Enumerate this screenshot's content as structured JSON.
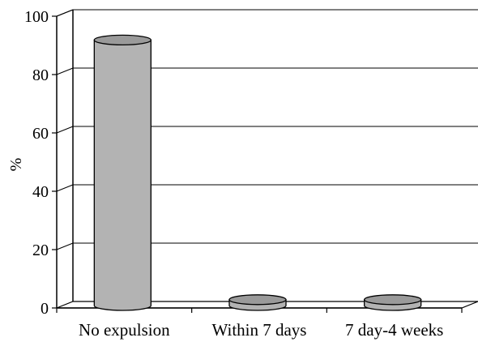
{
  "chart_data": {
    "type": "bar",
    "style": "3d-cylinder",
    "categories": [
      "No expulsion",
      "Within 7 days",
      "7 day-4 weeks"
    ],
    "values": [
      91,
      2,
      2
    ],
    "title": "",
    "xlabel": "",
    "ylabel": "%",
    "ylim": [
      0,
      100
    ],
    "yticks": [
      "0",
      "20",
      "40",
      "60",
      "80",
      "100"
    ],
    "grid": true,
    "legend": "none",
    "colors": {
      "bar_fill": "#b3b3b3",
      "bar_top": "#9a9a9a",
      "gridline": "#000000",
      "axis": "#000000",
      "background": "#ffffff"
    }
  }
}
